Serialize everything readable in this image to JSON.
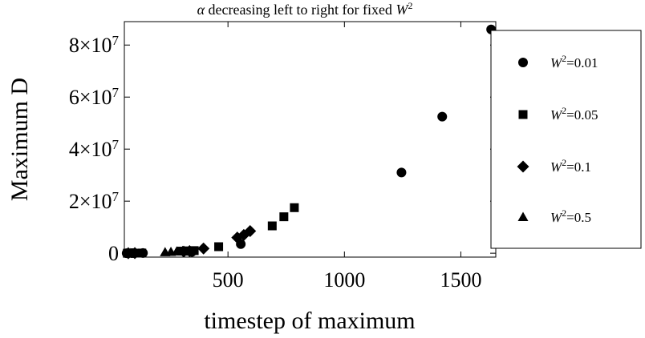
{
  "chart_data": {
    "type": "scatter",
    "title": {
      "prefix": "α",
      "text": " decreasing left to right for fixed ",
      "var": "W",
      "sup": "2"
    },
    "xlabel": "timestep of maximum",
    "ylabel": "Maximum D",
    "xlim": [
      55,
      1650
    ],
    "ylim": [
      -1500000,
      89000000
    ],
    "x_ticks": [
      {
        "value": 500,
        "label": "500"
      },
      {
        "value": 1000,
        "label": "1000"
      },
      {
        "value": 1500,
        "label": "1500"
      }
    ],
    "y_ticks": [
      {
        "value": 0,
        "label": "0",
        "exp": ""
      },
      {
        "value": 20000000,
        "label": "2×10",
        "exp": "7"
      },
      {
        "value": 40000000,
        "label": "4×10",
        "exp": "7"
      },
      {
        "value": 60000000,
        "label": "6×10",
        "exp": "7"
      },
      {
        "value": 80000000,
        "label": "8×10",
        "exp": "7"
      }
    ],
    "legend_position": "right",
    "series": [
      {
        "name": "=0.01",
        "var": "W",
        "sup": "2",
        "marker": "circle",
        "points": [
          [
            65,
            0
          ],
          [
            88,
            50000
          ],
          [
            99,
            30000
          ],
          [
            135,
            80000
          ],
          [
            345,
            500000
          ],
          [
            555,
            3500000
          ],
          [
            1245,
            31000000
          ],
          [
            1420,
            52500000
          ],
          [
            1630,
            86000000
          ]
        ]
      },
      {
        "name": "=0.05",
        "var": "W",
        "sup": "2",
        "marker": "square",
        "points": [
          [
            68,
            0
          ],
          [
            92,
            40000
          ],
          [
            130,
            60000
          ],
          [
            300,
            800000
          ],
          [
            330,
            900000
          ],
          [
            355,
            1000000
          ],
          [
            460,
            2500000
          ],
          [
            690,
            10500000
          ],
          [
            740,
            14000000
          ],
          [
            785,
            17500000
          ]
        ]
      },
      {
        "name": "=0.1",
        "var": "W",
        "sup": "2",
        "marker": "diamond",
        "points": [
          [
            72,
            0
          ],
          [
            100,
            20000
          ],
          [
            310,
            600000
          ],
          [
            335,
            800000
          ],
          [
            395,
            1800000
          ],
          [
            540,
            6000000
          ],
          [
            568,
            7000000
          ],
          [
            595,
            8500000
          ]
        ]
      },
      {
        "name": "=0.5",
        "var": "W",
        "sup": "2",
        "marker": "triangle",
        "points": [
          [
            80,
            0
          ],
          [
            230,
            400000
          ],
          [
            255,
            500000
          ],
          [
            280,
            700000
          ],
          [
            305,
            900000
          ],
          [
            320,
            600000
          ]
        ]
      }
    ]
  }
}
